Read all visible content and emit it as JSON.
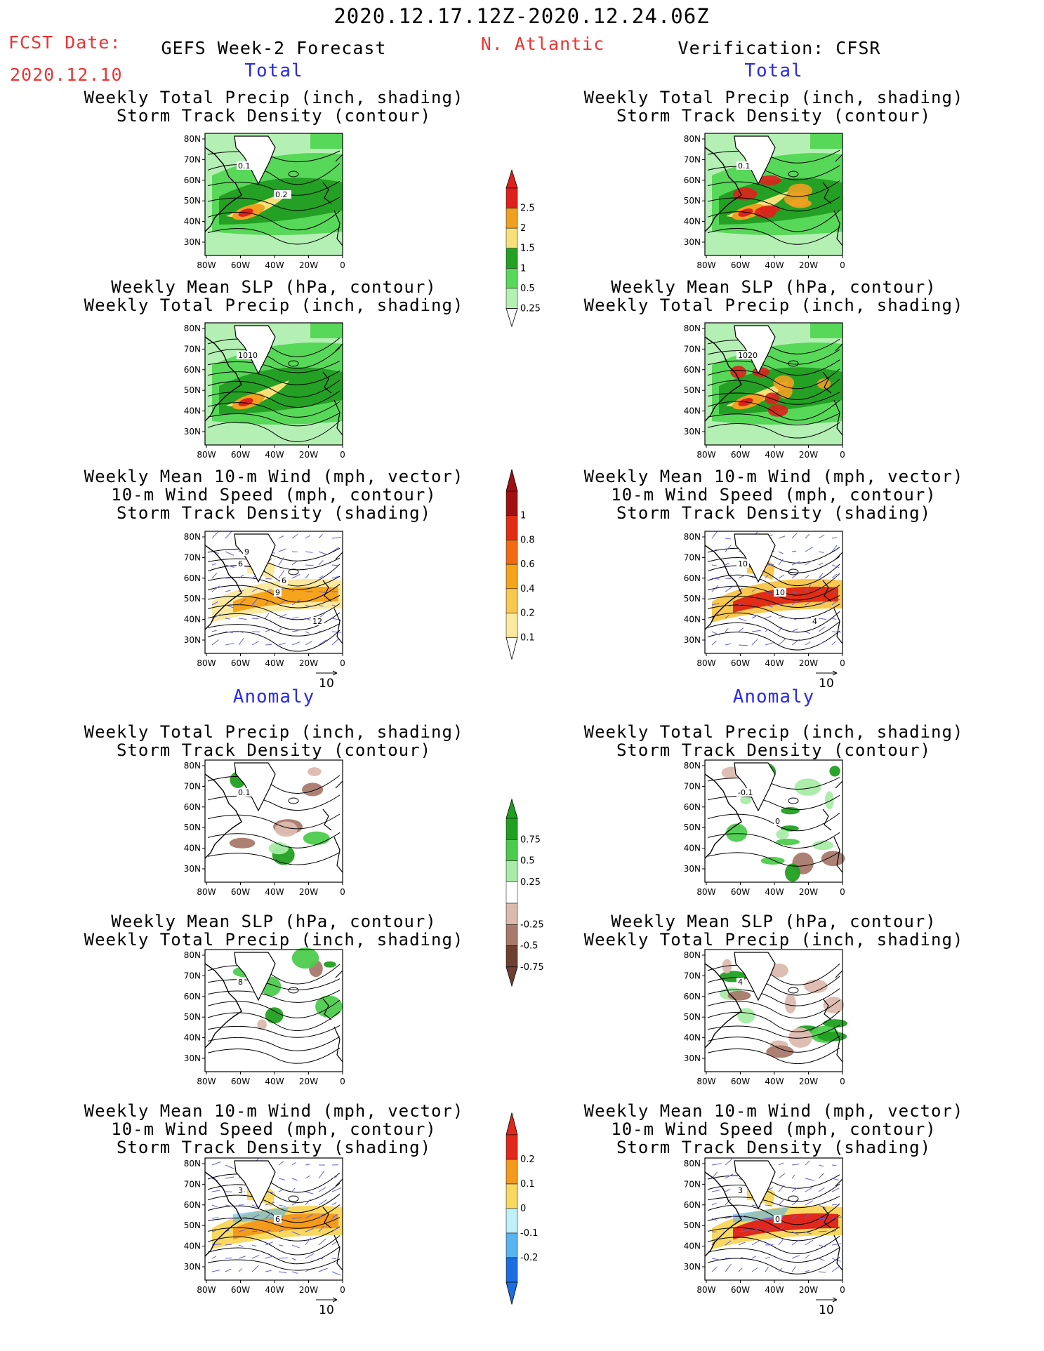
{
  "header": {
    "date_range": "2020.12.17.12Z-2020.12.24.06Z",
    "fcst_label": "FCST Date:",
    "fcst_date": "2020.12.10",
    "model": "GEFS Week-2 Forecast",
    "region": "N. Atlantic",
    "verification": "Verification: CFSR"
  },
  "sections": {
    "total_left": "Total",
    "total_right": "Total",
    "anomaly_left": "Anomaly",
    "anomaly_right": "Anomaly"
  },
  "panel_titles": {
    "precip_track": [
      "Weekly Total Precip (inch, shading)",
      "Storm Track Density (contour)"
    ],
    "slp_precip": [
      "Weekly Mean SLP (hPa, contour)",
      "Weekly Total Precip (inch, shading)"
    ],
    "wind_track": [
      "Weekly Mean 10-m Wind (mph, vector)",
      "10-m Wind Speed (mph, contour)",
      "Storm Track Density (shading)"
    ]
  },
  "axes": {
    "lat_labels": [
      "80N",
      "70N",
      "60N",
      "50N",
      "40N",
      "30N"
    ],
    "lon_labels": [
      "80W",
      "60W",
      "40W",
      "20W",
      "0"
    ]
  },
  "vector_scale": "10",
  "colorbars": [
    {
      "name": "precip-total",
      "labels": [
        "2.5",
        "2",
        "1.5",
        "1",
        "0.5",
        "0.25"
      ],
      "colors": [
        "#e0201c",
        "#f0a020",
        "#f7e07a",
        "#24a024",
        "#58d858",
        "#b4f0b4"
      ]
    },
    {
      "name": "track-total",
      "labels": [
        "1",
        "0.8",
        "0.6",
        "0.4",
        "0.2",
        "0.1"
      ],
      "colors": [
        "#a01010",
        "#e02d14",
        "#f26a14",
        "#f6a41c",
        "#f8c850",
        "#fbe9a0"
      ]
    },
    {
      "name": "precip-anom",
      "labels": [
        "0.75",
        "0.5",
        "0.25",
        "-0.25",
        "-0.5",
        "-0.75"
      ],
      "colors": [
        "#20a020",
        "#4ccc4c",
        "#a8eca8",
        "#ffffff",
        "#dcbaae",
        "#a87a6c",
        "#6e4032"
      ]
    },
    {
      "name": "track-anom",
      "labels": [
        "0.2",
        "0.1",
        "0",
        "-0.1",
        "-0.2"
      ],
      "colors": [
        "#e0281c",
        "#f49a1c",
        "#f8d860",
        "#c0f0fa",
        "#58b4f0",
        "#1c6ee0"
      ]
    }
  ],
  "panel_labels": {
    "p1_left": [
      "0.1",
      "0.2"
    ],
    "p1_right": [
      "0.1"
    ],
    "p2_left": [
      "1010"
    ],
    "p2_right": [
      "1020"
    ],
    "p3_left": [
      "6",
      "9",
      "12",
      "9",
      "6"
    ],
    "p3_right": [
      "10",
      "10",
      "4"
    ],
    "p4_left": [
      "0.1"
    ],
    "p4_right": [
      "-0.1",
      "0"
    ],
    "p5_left": [
      "8"
    ],
    "p5_right": [
      "4"
    ],
    "p6_left": [
      "3",
      "6"
    ],
    "p6_right": [
      "3",
      "0"
    ]
  }
}
